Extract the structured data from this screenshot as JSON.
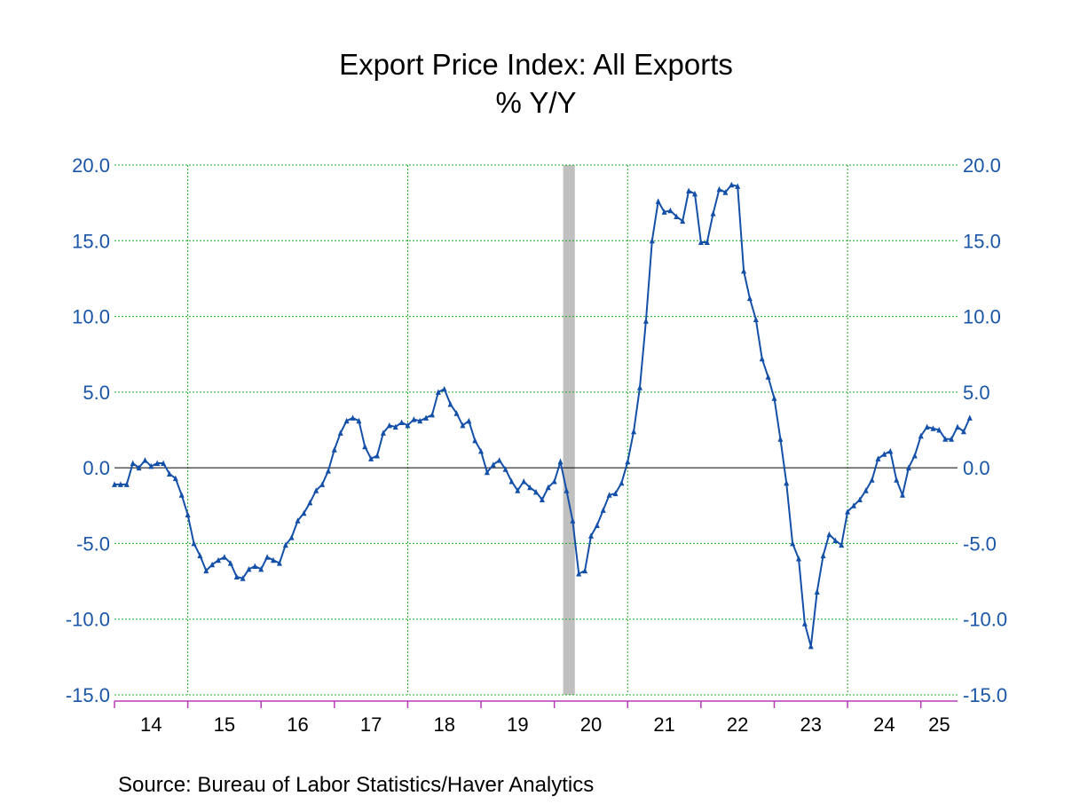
{
  "title": "Export Price Index: All Exports",
  "subtitle": "% Y/Y",
  "source": "Source:  Bureau of Labor Statistics/Haver Analytics",
  "colors": {
    "series": "#1450a8",
    "axis_label": "#1a56a8",
    "grid": "#22a822",
    "recession": "#c0c0c0",
    "x_axis": "#b83ab8",
    "zero_line": "#000000"
  },
  "chart_data": {
    "type": "line",
    "title": "Export Price Index: All Exports",
    "subtitle": "% Y/Y",
    "ylim": [
      -15,
      20
    ],
    "y_ticks": [
      "20.0",
      "15.0",
      "10.0",
      "5.0",
      "0.0",
      "-5.0",
      "-10.0",
      "-15.0"
    ],
    "y_axes": "left and right",
    "x_range": [
      2014.0,
      2025.5
    ],
    "x_tick_labels": [
      "14",
      "15",
      "16",
      "17",
      "18",
      "19",
      "20",
      "21",
      "22",
      "23",
      "24",
      "25"
    ],
    "grid": "vertical at 2015, 2018, 2021, 2024; horizontal at each y tick",
    "recession_shading": [
      2020.12,
      2020.28
    ],
    "zero_line": true,
    "series": [
      {
        "start": "2014-01",
        "frequency": "monthly",
        "marker": "triangle",
        "values": [
          -1.1,
          -1.1,
          -1.1,
          0.3,
          0.0,
          0.5,
          0.1,
          0.3,
          0.3,
          -0.4,
          -0.7,
          -1.8,
          -3.1,
          -5.0,
          -5.8,
          -6.8,
          -6.4,
          -6.1,
          -5.9,
          -6.3,
          -7.2,
          -7.3,
          -6.7,
          -6.5,
          -6.7,
          -5.9,
          -6.1,
          -6.3,
          -5.1,
          -4.6,
          -3.5,
          -3.0,
          -2.3,
          -1.5,
          -1.1,
          -0.2,
          1.2,
          2.3,
          3.1,
          3.3,
          3.1,
          1.4,
          0.6,
          0.8,
          2.3,
          2.8,
          2.7,
          3.0,
          2.8,
          3.2,
          3.1,
          3.3,
          3.5,
          5.0,
          5.2,
          4.2,
          3.6,
          2.8,
          3.1,
          1.8,
          1.1,
          -0.3,
          0.2,
          0.5,
          -0.1,
          -0.9,
          -1.5,
          -0.9,
          -1.3,
          -1.6,
          -2.1,
          -1.3,
          -0.9,
          0.4,
          -1.5,
          -3.5,
          -7.0,
          -6.8,
          -4.5,
          -3.8,
          -2.8,
          -1.8,
          -1.7,
          -1.0,
          0.4,
          2.4,
          5.3,
          9.7,
          15.0,
          17.6,
          16.9,
          17.0,
          16.6,
          16.3,
          18.3,
          18.1,
          14.9,
          14.9,
          16.8,
          18.4,
          18.2,
          18.7,
          18.6,
          13.0,
          11.2,
          9.8,
          7.2,
          6.0,
          4.6,
          1.9,
          -1.0,
          -5.0,
          -6.0,
          -10.3,
          -11.8,
          -8.2,
          -5.8,
          -4.4,
          -4.8,
          -5.1,
          -2.9,
          -2.5,
          -2.1,
          -1.5,
          -0.8,
          0.6,
          0.9,
          1.1,
          -0.8,
          -1.8,
          0.0,
          0.8,
          2.1,
          2.7,
          2.6,
          2.5,
          1.9,
          1.9,
          2.7,
          2.4,
          3.3
        ]
      }
    ]
  }
}
